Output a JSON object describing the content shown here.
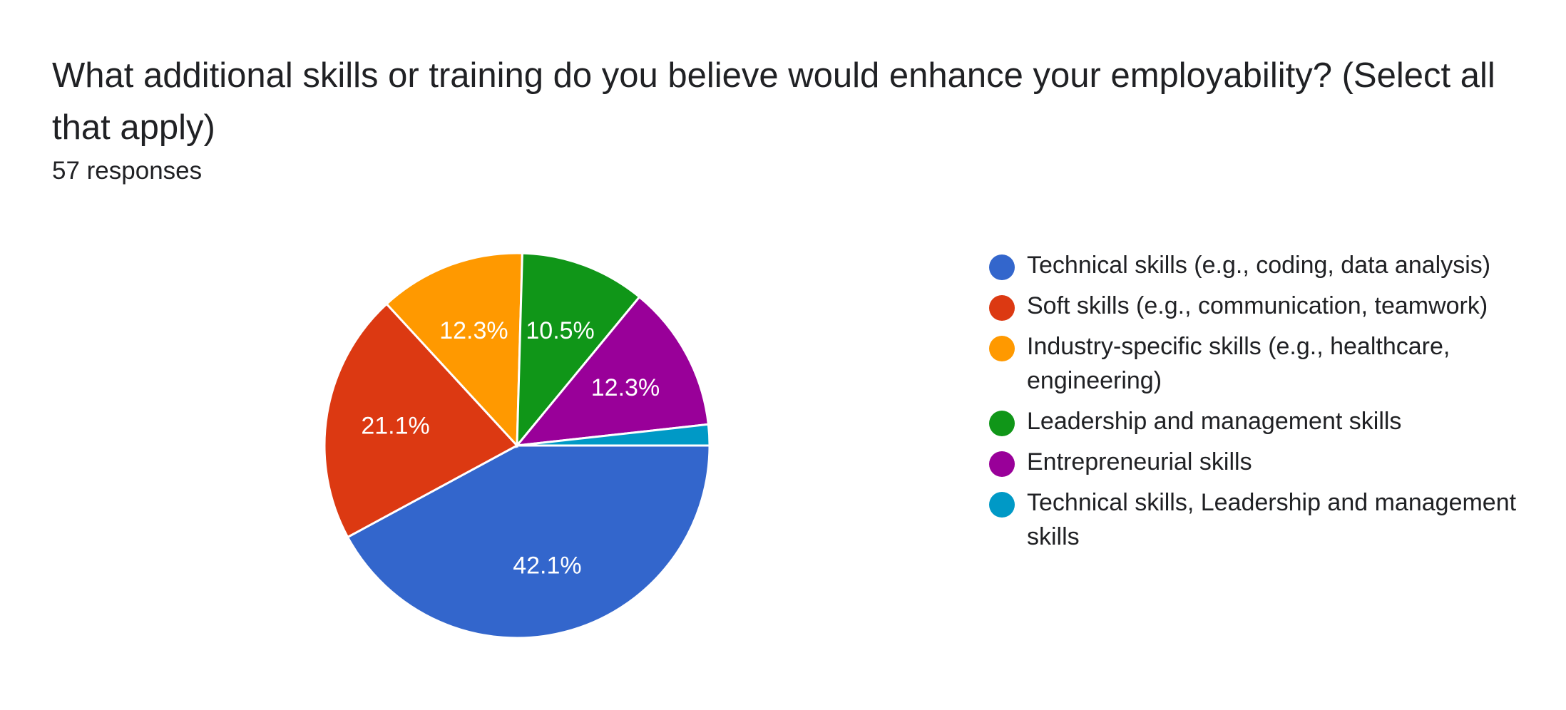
{
  "question": {
    "title": "What additional skills or training do you believe would enhance your employability? (Select all that apply)",
    "responses": "57 responses"
  },
  "chart_data": {
    "type": "pie",
    "total_responses": 57,
    "slices": [
      {
        "label": "Technical skills (e.g., coding, data analysis)",
        "value": 24,
        "percent_label": "42.1%",
        "color": "#3366cc"
      },
      {
        "label": "Soft skills (e.g., communication, teamwork)",
        "value": 12,
        "percent_label": "21.1%",
        "color": "#dc3912"
      },
      {
        "label": "Industry-specific skills (e.g., healthcare, engineering)",
        "value": 7,
        "percent_label": "12.3%",
        "color": "#ff9900"
      },
      {
        "label": "Leadership and management skills",
        "value": 6,
        "percent_label": "10.5%",
        "color": "#109618"
      },
      {
        "label": "Entrepreneurial skills",
        "value": 7,
        "percent_label": "12.3%",
        "color": "#990099"
      },
      {
        "label": "Technical skills, Leadership and management skills",
        "value": 1,
        "percent_label": "",
        "color": "#0099c6"
      }
    ],
    "legend_position": "right"
  }
}
